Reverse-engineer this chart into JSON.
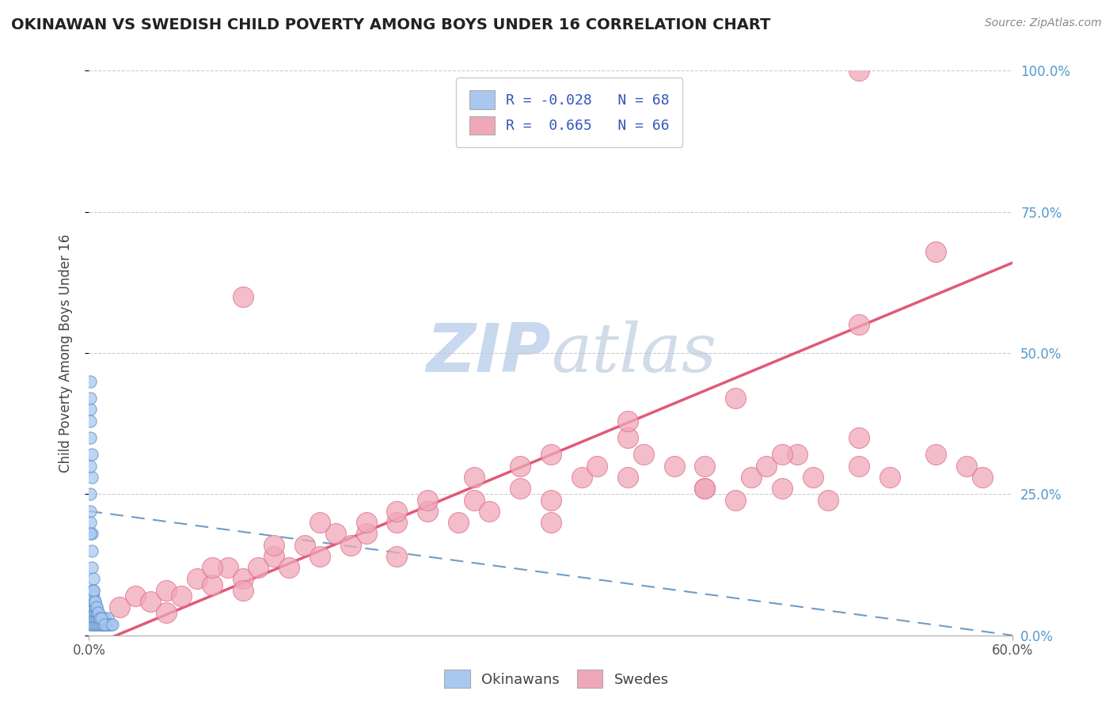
{
  "title": "OKINAWAN VS SWEDISH CHILD POVERTY AMONG BOYS UNDER 16 CORRELATION CHART",
  "source": "Source: ZipAtlas.com",
  "ylabel_label": "Child Poverty Among Boys Under 16",
  "legend_label1": "Okinawans",
  "legend_label2": "Swedes",
  "okinawan_R": -0.028,
  "okinawan_N": 68,
  "swedish_R": 0.665,
  "swedish_N": 66,
  "okinawan_color": "#a8c8f0",
  "swedish_color": "#f0a8b8",
  "swedish_color_edge": "#e07090",
  "trendline_blue": "#6090c0",
  "trendline_pink": "#e05070",
  "watermark_color": "#c8d8ee",
  "background_color": "#ffffff",
  "grid_color": "#c8c8c8",
  "xlim": [
    0.0,
    0.6
  ],
  "ylim": [
    0.0,
    1.0
  ],
  "okinawan_x": [
    0.001,
    0.001,
    0.001,
    0.001,
    0.001,
    0.002,
    0.002,
    0.002,
    0.002,
    0.002,
    0.002,
    0.002,
    0.003,
    0.003,
    0.003,
    0.003,
    0.003,
    0.003,
    0.003,
    0.004,
    0.004,
    0.004,
    0.004,
    0.004,
    0.005,
    0.005,
    0.005,
    0.005,
    0.006,
    0.006,
    0.006,
    0.007,
    0.007,
    0.008,
    0.008,
    0.009,
    0.009,
    0.01,
    0.01,
    0.011,
    0.012,
    0.012,
    0.013,
    0.014,
    0.001,
    0.001,
    0.002,
    0.002,
    0.001,
    0.001,
    0.001,
    0.001,
    0.001,
    0.001,
    0.002,
    0.002,
    0.001,
    0.001,
    0.002,
    0.003,
    0.003,
    0.004,
    0.005,
    0.006,
    0.007,
    0.008,
    0.01,
    0.015
  ],
  "okinawan_y": [
    0.02,
    0.03,
    0.04,
    0.05,
    0.06,
    0.02,
    0.03,
    0.04,
    0.05,
    0.06,
    0.07,
    0.08,
    0.02,
    0.03,
    0.04,
    0.05,
    0.06,
    0.07,
    0.08,
    0.02,
    0.03,
    0.04,
    0.05,
    0.06,
    0.02,
    0.03,
    0.04,
    0.05,
    0.02,
    0.03,
    0.04,
    0.02,
    0.03,
    0.02,
    0.03,
    0.02,
    0.03,
    0.02,
    0.03,
    0.02,
    0.02,
    0.03,
    0.02,
    0.02,
    0.35,
    0.4,
    0.28,
    0.32,
    0.42,
    0.45,
    0.38,
    0.3,
    0.25,
    0.22,
    0.18,
    0.15,
    0.2,
    0.18,
    0.12,
    0.1,
    0.08,
    0.06,
    0.05,
    0.04,
    0.03,
    0.03,
    0.02,
    0.02
  ],
  "swedish_x": [
    0.02,
    0.03,
    0.04,
    0.05,
    0.06,
    0.07,
    0.08,
    0.09,
    0.1,
    0.11,
    0.12,
    0.13,
    0.14,
    0.15,
    0.16,
    0.17,
    0.18,
    0.2,
    0.22,
    0.24,
    0.25,
    0.26,
    0.28,
    0.3,
    0.32,
    0.33,
    0.35,
    0.36,
    0.38,
    0.4,
    0.42,
    0.43,
    0.44,
    0.45,
    0.46,
    0.47,
    0.48,
    0.5,
    0.52,
    0.55,
    0.57,
    0.58,
    0.1,
    0.15,
    0.2,
    0.25,
    0.3,
    0.35,
    0.4,
    0.45,
    0.5,
    0.08,
    0.12,
    0.18,
    0.22,
    0.28,
    0.35,
    0.42,
    0.5,
    0.55,
    0.05,
    0.1,
    0.2,
    0.3,
    0.4,
    0.5
  ],
  "swedish_y": [
    0.05,
    0.07,
    0.06,
    0.08,
    0.07,
    0.1,
    0.09,
    0.12,
    0.1,
    0.12,
    0.14,
    0.12,
    0.16,
    0.14,
    0.18,
    0.16,
    0.18,
    0.2,
    0.22,
    0.2,
    0.24,
    0.22,
    0.26,
    0.24,
    0.28,
    0.3,
    0.28,
    0.32,
    0.3,
    0.26,
    0.24,
    0.28,
    0.3,
    0.26,
    0.32,
    0.28,
    0.24,
    0.3,
    0.28,
    0.32,
    0.3,
    0.28,
    0.6,
    0.2,
    0.22,
    0.28,
    0.32,
    0.35,
    0.3,
    0.32,
    0.35,
    0.12,
    0.16,
    0.2,
    0.24,
    0.3,
    0.38,
    0.42,
    0.55,
    0.68,
    0.04,
    0.08,
    0.14,
    0.2,
    0.26,
    1.0
  ]
}
